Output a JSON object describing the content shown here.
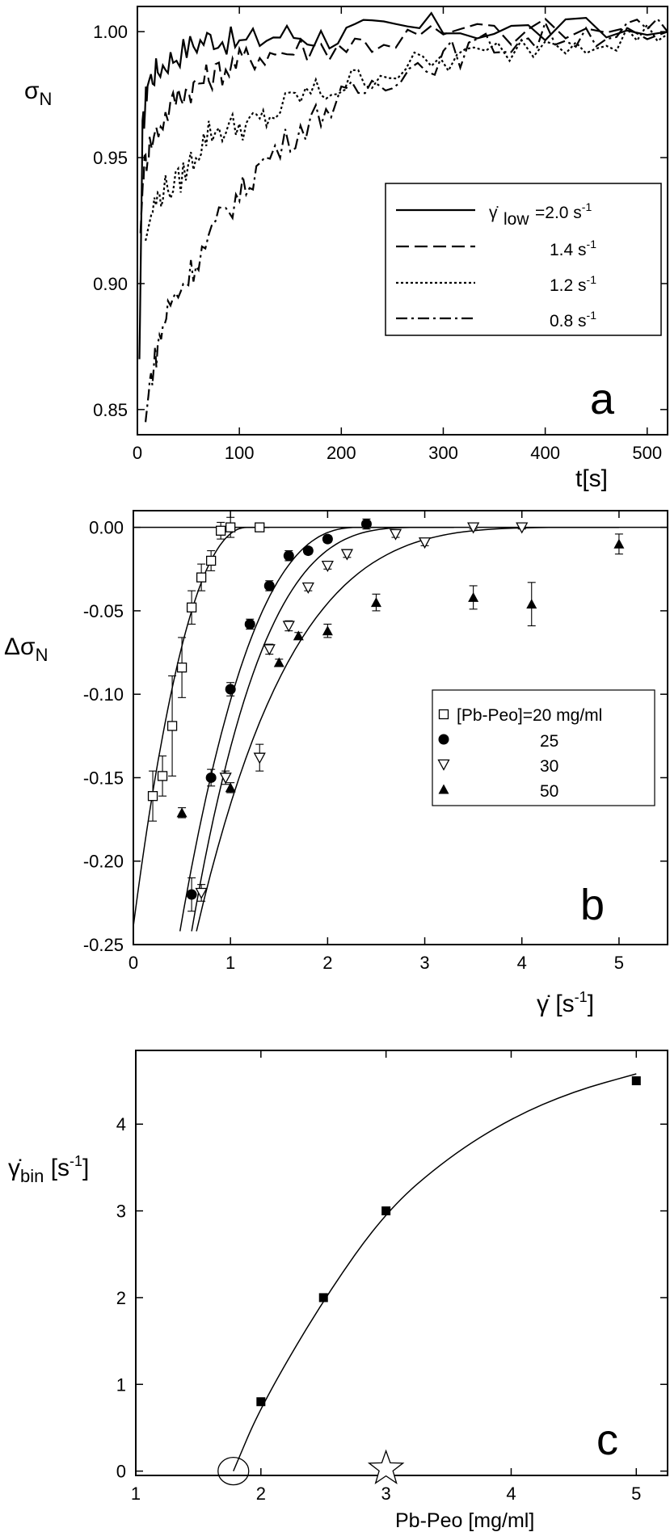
{
  "chart_data": [
    {
      "type": "line",
      "panel_label": "a",
      "xlabel": "t[s]",
      "ylabel": "σ",
      "ylabel_sub": "N",
      "xlim": [
        0,
        520
      ],
      "ylim": [
        0.84,
        1.01
      ],
      "x_ticks": [
        0,
        100,
        200,
        300,
        400,
        500
      ],
      "y_ticks": [
        0.85,
        0.9,
        0.95,
        1.0
      ],
      "y_tick_labels": [
        "0.85",
        "0.90",
        "0.95",
        "1.00"
      ],
      "legend": {
        "placement": "center-right",
        "symbol": "γ̇",
        "subscript": "low",
        "entries": [
          "=2.0 s",
          "1.4 s",
          "1.2 s",
          "0.8 s"
        ],
        "unit_sup": "-1"
      },
      "series": [
        {
          "legend_index": 0,
          "dash": "solid",
          "x": [
            2,
            5,
            10,
            20,
            35,
            55,
            75,
            100,
            140,
            180,
            230,
            300,
            400,
            520
          ],
          "y": [
            0.87,
            0.96,
            0.98,
            0.985,
            0.99,
            0.995,
            0.998,
            0.995,
            0.999,
            0.998,
            1.0,
            1.002,
            1.0,
            1.0
          ]
        },
        {
          "legend_index": 1,
          "dash": "dashed",
          "x": [
            3,
            6,
            12,
            25,
            40,
            55,
            70,
            90,
            110,
            140,
            180,
            230,
            300,
            400,
            520
          ],
          "y": [
            0.92,
            0.945,
            0.955,
            0.965,
            0.975,
            0.978,
            0.982,
            0.986,
            0.99,
            0.992,
            0.994,
            0.996,
            0.999,
            1.0,
            1.0
          ]
        },
        {
          "legend_index": 2,
          "dash": "dotted",
          "x": [
            8,
            15,
            25,
            40,
            55,
            70,
            90,
            110,
            130,
            160,
            190,
            230,
            280,
            330,
            400,
            460,
            520
          ],
          "y": [
            0.917,
            0.93,
            0.937,
            0.94,
            0.95,
            0.96,
            0.962,
            0.963,
            0.966,
            0.975,
            0.977,
            0.983,
            0.987,
            0.99,
            0.996,
            0.998,
            0.999
          ]
        },
        {
          "legend_index": 3,
          "dash": "dashdot",
          "x": [
            8,
            12,
            20,
            30,
            45,
            60,
            80,
            100,
            120,
            150,
            180,
            210,
            250,
            300,
            350,
            400,
            460,
            520
          ],
          "y": [
            0.845,
            0.86,
            0.875,
            0.89,
            0.9,
            0.91,
            0.925,
            0.935,
            0.947,
            0.958,
            0.968,
            0.975,
            0.983,
            0.99,
            0.995,
            0.998,
            1.0,
            1.0
          ]
        }
      ]
    },
    {
      "type": "scatter",
      "panel_label": "b",
      "xlabel": "γ̇ [s",
      "xlabel_sup": "-1",
      "xlabel_end": "]",
      "ylabel": "Δσ",
      "ylabel_sub": "N",
      "xlim": [
        0,
        5.5
      ],
      "ylim": [
        -0.25,
        0.01
      ],
      "x_ticks": [
        0,
        1,
        2,
        3,
        4,
        5
      ],
      "y_ticks": [
        -0.25,
        -0.2,
        -0.15,
        -0.1,
        -0.05,
        0.0
      ],
      "y_tick_labels": [
        "-0.25",
        "-0.20",
        "-0.15",
        "-0.10",
        "-0.05",
        "0.00"
      ],
      "legend": {
        "placement": "center-right"
      },
      "series": [
        {
          "name": "[Pb-Peo]=20 mg/ml",
          "marker": "open-square",
          "x": [
            0.2,
            0.3,
            0.4,
            0.5,
            0.6,
            0.7,
            0.8,
            0.9,
            1.0,
            1.3
          ],
          "y": [
            -0.161,
            -0.149,
            -0.119,
            -0.084,
            -0.048,
            -0.03,
            -0.02,
            -0.002,
            0.0,
            0.0
          ],
          "err": [
            0.015,
            0.012,
            0.03,
            0.018,
            0.01,
            0.008,
            0.006,
            0.005,
            0.006,
            0.001
          ]
        },
        {
          "name": "25",
          "marker": "filled-circle",
          "x": [
            0.6,
            0.8,
            1.0,
            1.2,
            1.4,
            1.6,
            1.8,
            2.0,
            2.4
          ],
          "y": [
            -0.22,
            -0.15,
            -0.097,
            -0.058,
            -0.035,
            -0.017,
            -0.014,
            -0.007,
            0.002
          ],
          "err": [
            0.01,
            0.005,
            0.004,
            0.003,
            0.003,
            0.003,
            0.002,
            0.002,
            0.003
          ]
        },
        {
          "name": "30",
          "marker": "open-triangle-down",
          "x": [
            0.7,
            0.95,
            1.3,
            1.4,
            1.6,
            1.8,
            2.0,
            2.2,
            2.7,
            3.0,
            3.5,
            4.0
          ],
          "y": [
            -0.219,
            -0.15,
            -0.138,
            -0.073,
            -0.059,
            -0.036,
            -0.023,
            -0.016,
            -0.004,
            -0.009,
            0.0,
            0.0
          ],
          "err": [
            0.005,
            0.004,
            0.008,
            0.003,
            0.003,
            0.002,
            0.002,
            0.002,
            0.002,
            0.002,
            0.001,
            0.001
          ]
        },
        {
          "name": "50",
          "marker": "filled-triangle-up",
          "x": [
            0.5,
            1.0,
            1.5,
            1.7,
            2.0,
            2.5,
            3.5,
            4.1,
            5.0
          ],
          "y": [
            -0.171,
            -0.156,
            -0.081,
            -0.065,
            -0.062,
            -0.045,
            -0.042,
            -0.046,
            -0.01
          ],
          "err": [
            0.003,
            0.003,
            0.002,
            0.002,
            0.004,
            0.005,
            0.007,
            0.013,
            0.006
          ]
        }
      ],
      "fits": [
        {
          "x0": 0.0,
          "x1": 1.4,
          "x_sat": 1.18,
          "p": 2.2,
          "a": -0.239
        },
        {
          "x0": 0.48,
          "x1": 2.8,
          "x_sat": 2.35,
          "p": 2.6,
          "a": -0.242
        },
        {
          "x0": 0.6,
          "x1": 3.3,
          "x_sat": 3.05,
          "p": 3.4,
          "a": -0.242
        },
        {
          "x0": 0.65,
          "x1": 5.0,
          "x_sat": 5.0,
          "p": 4.5,
          "a": -0.242
        }
      ]
    },
    {
      "type": "scatter",
      "panel_label": "c",
      "xlabel": "Pb-Peo [mg/ml]",
      "ylabel": "γ̇",
      "ylabel_sub": "bin",
      "ylabel_end": " [s",
      "ylabel_sup": "-1",
      "ylabel_close": "]",
      "xlim": [
        1,
        5.25
      ],
      "ylim": [
        -0.05,
        4.85
      ],
      "x_ticks": [
        1,
        2,
        3,
        4,
        5
      ],
      "y_ticks": [
        0,
        1,
        2,
        3,
        4
      ],
      "x": [
        2.0,
        2.5,
        3.0,
        5.0
      ],
      "y": [
        0.8,
        2.0,
        3.0,
        4.5
      ],
      "fit": {
        "x": [
          1.78,
          2.0,
          2.5,
          3.0,
          3.5,
          4.0,
          4.5,
          5.0
        ],
        "y": [
          0.0,
          0.75,
          1.98,
          3.0,
          3.62,
          4.07,
          4.38,
          4.58
        ]
      },
      "annotations": [
        {
          "shape": "ellipse",
          "x": 1.78,
          "y": 0
        },
        {
          "shape": "star",
          "x": 3.0,
          "y": 0
        }
      ]
    }
  ]
}
